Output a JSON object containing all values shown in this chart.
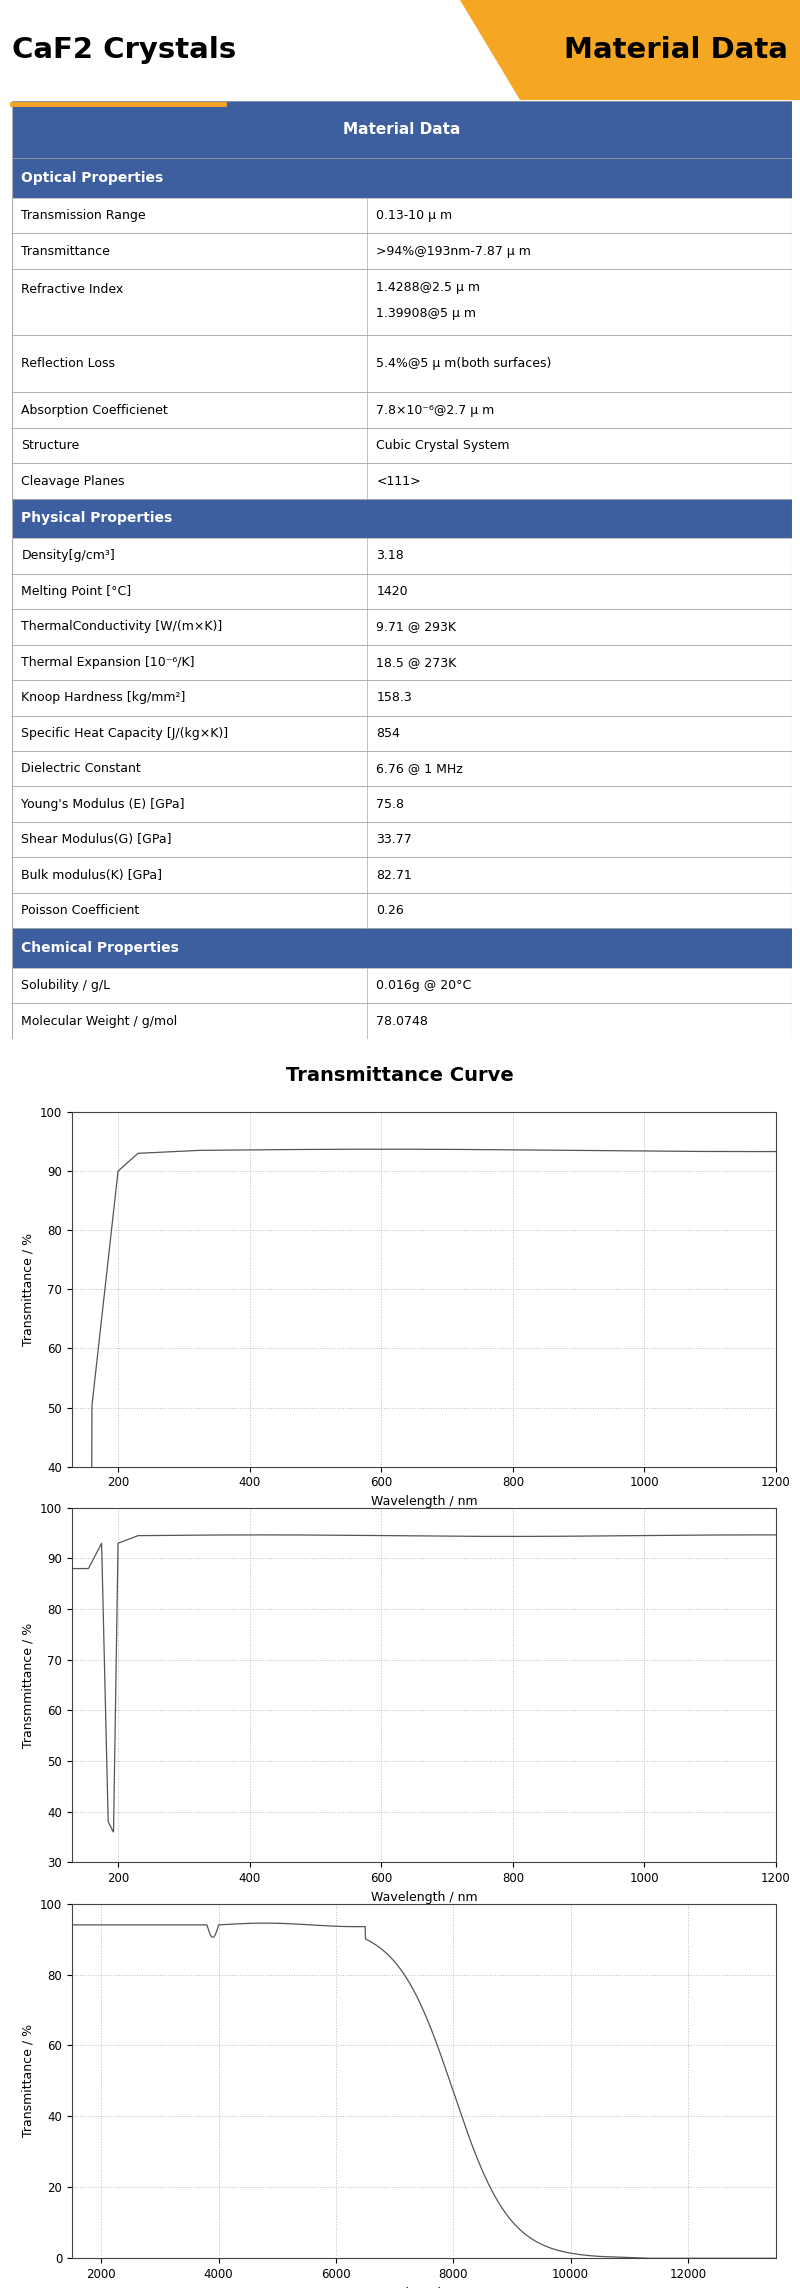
{
  "title_left": "CaF2 Crystals",
  "title_right": "Material Data",
  "header_bg": "#3d5fa0",
  "section_bg": "#3d5fa0",
  "orange_color": "#F5A623",
  "border_color": "#aaaaaa",
  "table_header": "Material Data",
  "sections": [
    {
      "name": "Optical Properties",
      "rows": [
        [
          "Transmission Range",
          "0.13-10 μ m"
        ],
        [
          "Transmittance",
          ">94%@193nm-7.87 μ m"
        ],
        [
          "Refractive Index",
          "1.4288@2.5 μ m\n1.39908@5 μ m"
        ],
        [
          "Reflection Loss",
          "5.4%@5 μ m(both surfaces)"
        ],
        [
          "Absorption Coefficienet",
          "7.8×10⁻⁶@2.7 μ m"
        ],
        [
          "Structure",
          "Cubic Crystal System"
        ],
        [
          "Cleavage Planes",
          "<111>"
        ]
      ]
    },
    {
      "name": "Physical Properties",
      "rows": [
        [
          "Density[g/cm³]",
          "3.18"
        ],
        [
          "Melting Point [°C]",
          "1420"
        ],
        [
          "ThermalConductivity [W/(m×K)]",
          "9.71 @ 293K"
        ],
        [
          "Thermal Expansion [10⁻⁶/K]",
          "18.5 @ 273K"
        ],
        [
          "Knoop Hardness [kg/mm²]",
          "158.3"
        ],
        [
          "Specific Heat Capacity [J/(kg×K)]",
          "854"
        ],
        [
          "Dielectric Constant",
          "6.76 @ 1 MHz"
        ],
        [
          "Young's Modulus (E) [GPa]",
          "75.8"
        ],
        [
          "Shear Modulus(G) [GPa]",
          "33.77"
        ],
        [
          "Bulk modulus(K) [GPa]",
          "82.71"
        ],
        [
          "Poisson Coefficient",
          "0.26"
        ]
      ]
    },
    {
      "name": "Chemical Properties",
      "rows": [
        [
          "Solubility / g/L",
          "0.016g @ 20°C"
        ],
        [
          "Molecular Weight / g/mol",
          "78.0748"
        ]
      ]
    }
  ],
  "curve_title": "Transmittance Curve",
  "chart1": {
    "xlabel": "Wavelength / nm",
    "ylabel": "Transmittance / %",
    "xlim": [
      130,
      1200
    ],
    "ylim": [
      40,
      100
    ],
    "xticks": [
      200,
      400,
      600,
      800,
      1000,
      1200
    ],
    "yticks": [
      40,
      50,
      60,
      70,
      80,
      90,
      100
    ]
  },
  "chart2": {
    "xlabel": "Wavelength / nm",
    "ylabel": "Transmmittance / %",
    "xlim": [
      130,
      1200
    ],
    "ylim": [
      30,
      100
    ],
    "xticks": [
      200,
      400,
      600,
      800,
      1000,
      1200
    ],
    "yticks": [
      30,
      40,
      50,
      60,
      70,
      80,
      90,
      100
    ]
  },
  "chart3": {
    "xlabel": "Wavelength / nm",
    "ylabel": "Transmittance / %",
    "xlim": [
      1500,
      13500
    ],
    "ylim": [
      0,
      100
    ],
    "xticks": [
      2000,
      4000,
      6000,
      8000,
      10000,
      12000
    ],
    "yticks": [
      0,
      20,
      40,
      60,
      80,
      100
    ]
  }
}
